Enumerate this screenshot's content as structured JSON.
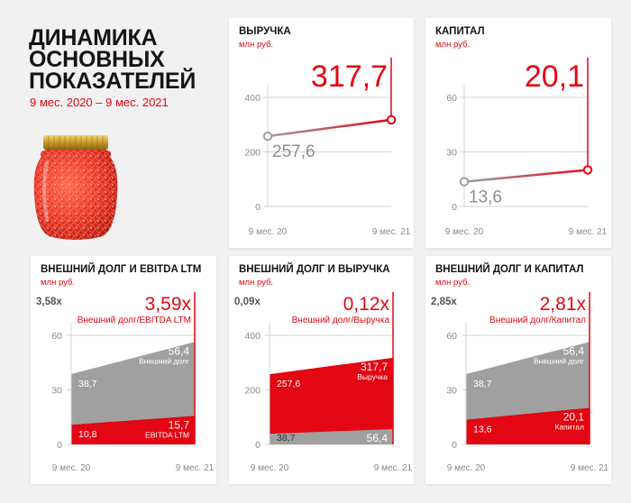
{
  "header": {
    "title_lines": [
      "ДИНАМИКА",
      "ОСНОВНЫХ",
      "ПОКАЗАТЕЛЕЙ"
    ],
    "period": "9 мес. 2020 – 9 мес. 2021"
  },
  "colors": {
    "accent": "#e30613",
    "gray": "#a0a0a0",
    "grid": "#d4d4d4",
    "axis_text": "#8a8a8a",
    "jar": "#e9372a"
  },
  "jar_image": {
    "icon": "red-caviar-jar"
  },
  "chart_data": [
    {
      "type": "line",
      "title": "ВЫРУЧКА",
      "unit": "млн руб.",
      "categories": [
        "9 мес. 20",
        "9 мес. 21"
      ],
      "values": [
        257.6,
        317.7
      ],
      "value_labels": [
        "257,6",
        "317,7"
      ],
      "ylim": [
        0,
        400
      ],
      "yticks": [
        0,
        200,
        400
      ],
      "ytick_labels": [
        "0",
        "200",
        "400"
      ],
      "grid": true
    },
    {
      "type": "line",
      "title": "КАПИТАЛ",
      "unit": "млн руб.",
      "categories": [
        "9 мес. 20",
        "9 мес. 21"
      ],
      "values": [
        13.6,
        20.1
      ],
      "value_labels": [
        "13,6",
        "20,1"
      ],
      "ylim": [
        0,
        60
      ],
      "yticks": [
        0,
        30,
        60
      ],
      "ytick_labels": [
        "0",
        "30",
        "60"
      ],
      "grid": true
    },
    {
      "type": "area",
      "title": "ВНЕШНИЙ ДОЛГ И EBITDA LTM",
      "unit": "млн руб.",
      "categories": [
        "9 мес. 20",
        "9 мес. 21"
      ],
      "ylim": [
        0,
        60
      ],
      "yticks": [
        0,
        30,
        60
      ],
      "ytick_labels": [
        "0",
        "30",
        "60"
      ],
      "grid": true,
      "ratio_start": "3,58x",
      "ratio_end": "3,59x",
      "ratio_label": "Внешний долг/EBITDA LTM",
      "series": [
        {
          "name": "Внешний долг",
          "values": [
            38.7,
            56.4
          ],
          "value_labels": [
            "38,7",
            "56,4"
          ],
          "color": "#a0a0a0"
        },
        {
          "name": "EBITDA LTM",
          "values": [
            10.8,
            15.7
          ],
          "value_labels": [
            "10,8",
            "15,7"
          ],
          "color": "#e30613"
        }
      ]
    },
    {
      "type": "area",
      "title": "ВНЕШНИЙ ДОЛГ И ВЫРУЧКА",
      "unit": "млн руб.",
      "categories": [
        "9 мес. 20",
        "9 мес. 21"
      ],
      "ylim": [
        0,
        400
      ],
      "yticks": [
        0,
        200,
        400
      ],
      "ytick_labels": [
        "0",
        "200",
        "400"
      ],
      "grid": true,
      "ratio_start": "0,09x",
      "ratio_end": "0,12x",
      "ratio_label": "Внешний долг/Выручка",
      "series": [
        {
          "name": "Выручка",
          "values": [
            257.6,
            317.7
          ],
          "value_labels": [
            "257,6",
            "317,7"
          ],
          "color": "#e30613"
        },
        {
          "name": "Внешний долг",
          "values": [
            38.7,
            56.4
          ],
          "value_labels": [
            "38,7",
            "56,4"
          ],
          "color": "#a0a0a0"
        }
      ]
    },
    {
      "type": "area",
      "title": "ВНЕШНИЙ ДОЛГ И КАПИТАЛ",
      "unit": "млн руб.",
      "categories": [
        "9 мес. 20",
        "9 мес. 21"
      ],
      "ylim": [
        0,
        60
      ],
      "yticks": [
        0,
        30,
        60
      ],
      "ytick_labels": [
        "0",
        "30",
        "60"
      ],
      "grid": true,
      "ratio_start": "2,85x",
      "ratio_end": "2,81x",
      "ratio_label": "Внешний долг/Капитал",
      "series": [
        {
          "name": "Внешний долг",
          "values": [
            38.7,
            56.4
          ],
          "value_labels": [
            "38,7",
            "56,4"
          ],
          "color": "#a0a0a0"
        },
        {
          "name": "Капитал",
          "values": [
            13.6,
            20.1
          ],
          "value_labels": [
            "13,6",
            "20,1"
          ],
          "color": "#e30613"
        }
      ]
    }
  ]
}
